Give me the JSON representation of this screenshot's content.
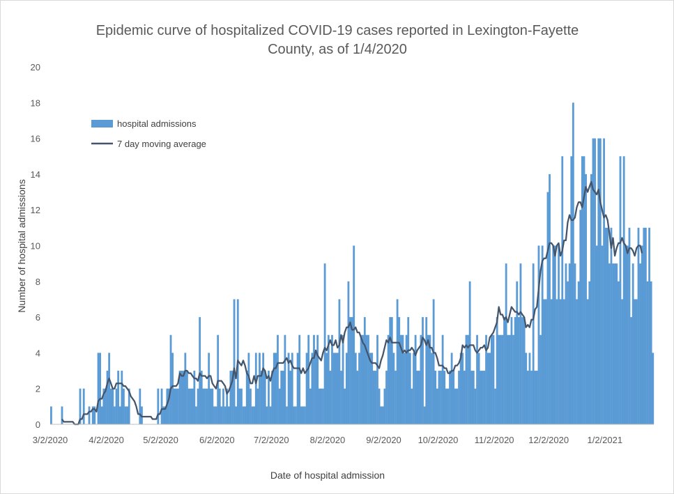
{
  "chart_data": {
    "type": "bar",
    "title": "Epidemic curve of hospitalized COVID-19 cases reported in Lexington-Fayette County, as of 1/4/2020",
    "title_lines": [
      "Epidemic curve of hospitalized COVID-19 cases reported in Lexington-Fayette",
      "County, as of 1/4/2020"
    ],
    "xlabel": "Date of hospital admission",
    "ylabel": "Number of hospital admissions",
    "ylim": [
      0,
      20
    ],
    "y_ticks": [
      "0",
      "2",
      "4",
      "6",
      "8",
      "10",
      "12",
      "14",
      "16",
      "18",
      "20"
    ],
    "x_tick_labels": [
      "3/2/2020",
      "4/2/2020",
      "5/2/2020",
      "6/2/2020",
      "7/2/2020",
      "8/2/2020",
      "9/2/2020",
      "10/2/2020",
      "11/2/2020",
      "12/2/2020",
      "1/2/2021"
    ],
    "x_start": "2020-03-02",
    "x_end": "2021-01-04",
    "grid": false,
    "legend_position": "upper-left",
    "colors": {
      "bars": "#5b9bd5",
      "line": "#44546a",
      "text": "#595959",
      "axis": "#bfbfbf"
    },
    "series": [
      {
        "name": "hospital admissions",
        "type": "bar",
        "values": [
          1,
          0,
          0,
          0,
          0,
          0,
          1,
          0,
          0,
          0,
          0,
          0,
          0,
          0,
          0,
          0,
          2,
          0,
          2,
          0,
          0,
          1,
          0,
          1,
          1,
          0,
          4,
          4,
          1,
          2,
          2,
          3,
          4,
          2,
          2,
          1,
          2,
          3,
          1,
          3,
          2,
          1,
          1,
          2,
          0,
          0,
          0,
          0,
          0,
          2,
          1,
          0,
          0,
          0,
          0,
          0,
          0,
          0,
          0,
          2,
          0,
          2,
          1,
          1,
          2,
          2,
          5,
          4,
          2,
          2,
          2,
          3,
          3,
          3,
          4,
          3,
          2,
          2,
          2,
          3,
          1,
          2,
          6,
          3,
          2,
          2,
          2,
          4,
          2,
          2,
          1,
          1,
          5,
          2,
          1,
          2,
          1,
          2,
          1,
          3,
          3,
          7,
          1,
          7,
          2,
          2,
          1,
          1,
          3,
          4,
          2,
          1,
          1,
          4,
          2,
          4,
          3,
          4,
          3,
          1,
          3,
          1,
          3,
          4,
          4,
          5,
          2,
          3,
          3,
          5,
          1,
          4,
          3,
          4,
          1,
          1,
          4,
          5,
          1,
          1,
          1,
          4,
          5,
          2,
          4,
          5,
          4,
          5,
          2,
          2,
          2,
          9,
          4,
          5,
          3,
          5,
          4,
          4,
          4,
          7,
          3,
          5,
          2,
          4,
          8,
          6,
          6,
          10,
          4,
          3,
          4,
          5,
          5,
          6,
          5,
          5,
          4,
          4,
          3,
          3,
          5,
          2,
          1,
          1,
          2,
          3,
          5,
          6,
          6,
          4,
          3,
          7,
          6,
          5,
          5,
          4,
          5,
          6,
          4,
          2,
          4,
          5,
          3,
          3,
          5,
          6,
          1,
          6,
          5,
          5,
          4,
          7,
          3,
          2,
          3,
          3,
          5,
          3,
          2,
          2,
          3,
          4,
          3,
          2,
          2,
          3,
          4,
          4,
          3,
          5,
          5,
          8,
          3,
          3,
          2,
          5,
          4,
          3,
          3,
          3,
          5,
          4,
          4,
          5,
          5,
          2,
          6,
          5,
          5,
          5,
          6,
          9,
          5,
          5,
          6,
          5,
          6,
          8,
          6,
          9,
          6,
          6,
          4,
          3,
          4,
          3,
          9,
          3,
          3,
          10,
          5,
          10,
          7,
          7,
          13,
          14,
          7,
          10,
          10,
          7,
          10,
          7,
          15,
          7,
          9,
          8,
          9,
          15,
          18,
          9,
          7,
          8,
          12,
          15,
          15,
          14,
          7,
          8,
          14,
          16,
          16,
          10,
          16,
          16,
          10,
          16,
          11,
          11,
          9,
          11,
          9,
          9,
          9,
          8,
          15,
          7,
          15,
          10,
          10,
          11,
          6,
          9,
          7,
          7,
          11,
          9,
          10,
          11,
          11,
          8,
          11,
          8,
          4
        ]
      },
      {
        "name": "7 day moving average",
        "type": "line",
        "values": [
          null,
          null,
          null,
          null,
          null,
          null,
          0.29,
          0.14,
          0.14,
          0.14,
          0.14,
          0.14,
          0.14,
          0,
          0,
          0,
          0.29,
          0.29,
          0.57,
          0.57,
          0.57,
          0.71,
          0.71,
          0.86,
          0.86,
          0.71,
          1.29,
          1.43,
          1.43,
          1.71,
          1.86,
          2.29,
          2.57,
          2.29,
          2,
          2,
          2.29,
          2.29,
          2.29,
          2.29,
          2.14,
          2.14,
          2,
          1.86,
          1.57,
          1.43,
          1.29,
          1,
          0.57,
          0.57,
          0.43,
          0.43,
          0.43,
          0.43,
          0.43,
          0.43,
          0.29,
          0.29,
          0.29,
          0.57,
          0.57,
          0.86,
          0.86,
          0.86,
          1.14,
          1.43,
          2,
          2.14,
          2.14,
          2.14,
          2.29,
          2.86,
          2.71,
          2.71,
          3,
          3,
          2.86,
          2.86,
          2.71,
          2.57,
          2.57,
          2.43,
          2.86,
          2.71,
          2.71,
          2.71,
          2.57,
          2.71,
          2.71,
          2.29,
          2.14,
          2,
          2.43,
          2.43,
          2.43,
          2.29,
          2.14,
          1.71,
          1.86,
          2.14,
          2.43,
          3.14,
          2.57,
          3.57,
          3.43,
          3.29,
          3.57,
          3.29,
          2.86,
          2.71,
          2.29,
          2.29,
          2.71,
          2.29,
          2.71,
          2.71,
          2.71,
          3.14,
          3,
          2.57,
          2.71,
          2.43,
          2.86,
          3.14,
          3.14,
          3.43,
          3.43,
          3.43,
          3.43,
          3.57,
          3.71,
          3.43,
          3.57,
          3.29,
          3.14,
          3.14,
          3.14,
          3.14,
          2.86,
          3.14,
          2.86,
          3,
          3.14,
          3.43,
          3.71,
          3.71,
          4.14,
          3.86,
          3.71,
          3.57,
          4,
          4.29,
          4.14,
          4.43,
          4.71,
          4.43,
          4.43,
          4.71,
          4.29,
          4.43,
          5,
          4.57,
          5.14,
          5.43,
          5.43,
          5.71,
          5.29,
          5.29,
          5.43,
          5.14,
          5.14,
          4.86,
          4.57,
          4.43,
          4.14,
          3.86,
          3.57,
          3.43,
          3.43,
          3.43,
          3.29,
          3.14,
          3.57,
          3.86,
          4.29,
          4.71,
          4.57,
          4.86,
          4.57,
          4.57,
          4.57,
          4.57,
          4.57,
          4.29,
          4,
          4.14,
          4,
          4.14,
          4.14,
          4.29,
          4.14,
          3.86,
          4.14,
          4.29,
          4.43,
          4.86,
          4.71,
          4.43,
          4.71,
          4.29,
          4.29,
          4,
          4,
          3.71,
          3.29,
          3.29,
          3.29,
          3.14,
          3.14,
          2.86,
          2.86,
          3,
          3,
          3.29,
          3.29,
          3.43,
          3.71,
          4.43,
          4.29,
          4.43,
          4.29,
          4.43,
          4.43,
          4.43,
          4.14,
          4,
          4.14,
          4.29,
          4.29,
          4.43,
          4.14,
          4.29,
          4.86,
          5,
          5.14,
          5.43,
          5.71,
          6.57,
          6.14,
          6.14,
          5.86,
          6,
          5.71,
          6.14,
          6.57,
          6.43,
          6.29,
          6.29,
          6.14,
          6.29,
          6.14,
          6,
          5.43,
          5.57,
          5.43,
          5.86,
          5.86,
          6.43,
          6.57,
          7.57,
          8.57,
          9.14,
          9.29,
          9.29,
          9.71,
          10.14,
          10.14,
          10,
          9.43,
          10,
          10.14,
          9.43,
          9.71,
          10.29,
          10.29,
          11.29,
          11.71,
          11.43,
          11.43,
          11.57,
          12.14,
          12.43,
          12.43,
          12.14,
          12.71,
          13.29,
          13,
          13.29,
          13.57,
          13.14,
          13,
          12.86,
          13.14,
          12.43,
          12,
          11.57,
          11.71,
          11.43,
          10.71,
          9.86,
          10.43,
          9.43,
          9.86,
          10.14,
          10.14,
          10.43,
          10.14,
          10,
          9.57,
          9.86,
          9.86,
          9.71,
          9.43,
          9.86,
          10,
          10,
          9.57
        ]
      }
    ]
  }
}
